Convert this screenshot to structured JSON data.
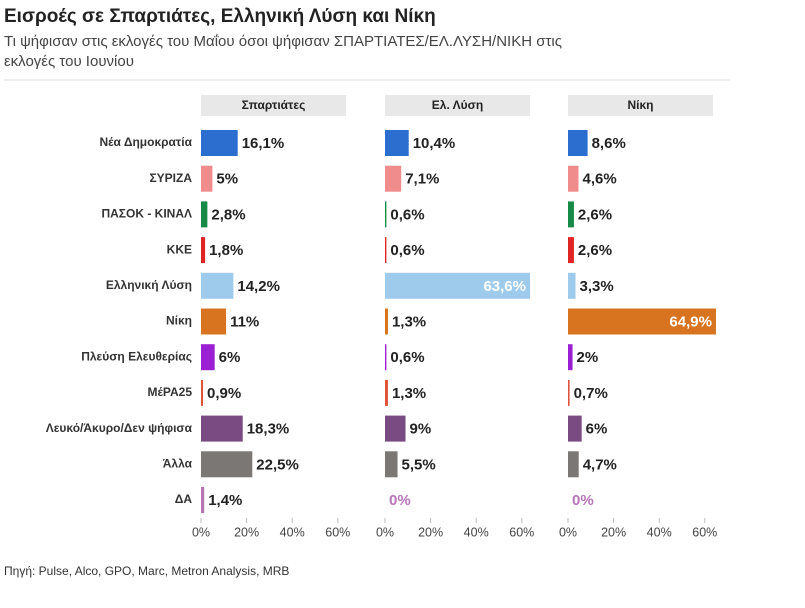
{
  "chart_data": {
    "type": "bar",
    "title": "Εισροές σε Σπαρτιάτες, Ελληνική Λύση και Νίκη",
    "subtitle": [
      "Τι ψήφισαν στις εκλογές του Μαΐου όσοι ψήφισαν ΣΠΑΡΤΙΑΤΕΣ/ΕΛ.ΛΥΣΗ/ΝΙΚΗ στις",
      "εκλογές του Ιουνίου"
    ],
    "source": "Πηγή: Pulse, Alco, GPO, Marc, Metron Analysis, MRB",
    "categories": [
      "Νέα Δημοκρατία",
      "ΣΥΡΙΖΑ",
      "ΠΑΣΟΚ - ΚΙΝΑΛ",
      "ΚΚΕ",
      "Ελληνική Λύση",
      "Νίκη",
      "Πλεύση Ελευθερίας",
      "ΜέΡΑ25",
      "Λευκό/Άκυρο/Δεν ψήφισα",
      "Άλλα",
      "ΔΑ"
    ],
    "colors": [
      "#2c6dd0",
      "#f08c8c",
      "#178a48",
      "#e02424",
      "#9ecbec",
      "#d8741f",
      "#9b1fd3",
      "#e0533a",
      "#7a4b82",
      "#7b7774",
      "#b775b8"
    ],
    "xlim": [
      0,
      60
    ],
    "xticks": [
      {
        "value": 0,
        "label": "0%"
      },
      {
        "value": 20,
        "label": "20%"
      },
      {
        "value": 40,
        "label": "40%"
      },
      {
        "value": 60,
        "label": "60%"
      }
    ],
    "series": [
      {
        "name": "Σπαρτιάτες",
        "values": [
          16.1,
          5,
          2.8,
          1.8,
          14.2,
          11,
          6,
          0.9,
          18.3,
          22.5,
          1.4
        ],
        "value_labels": [
          "16,1%",
          "5%",
          "2,8%",
          "1,8%",
          "14,2%",
          "11%",
          "6%",
          "0,9%",
          "18,3%",
          "22,5%",
          "1,4%"
        ]
      },
      {
        "name": "Ελ. Λύση",
        "values": [
          10.4,
          7.1,
          0.6,
          0.6,
          63.6,
          1.3,
          0.6,
          1.3,
          9,
          5.5,
          0
        ],
        "value_labels": [
          "10,4%",
          "7,1%",
          "0,6%",
          "0,6%",
          "63,6%",
          "1,3%",
          "0,6%",
          "1,3%",
          "9%",
          "5,5%",
          "0%"
        ]
      },
      {
        "name": "Νίκη",
        "values": [
          8.6,
          4.6,
          2.6,
          2.6,
          3.3,
          64.9,
          2,
          0.7,
          6,
          4.7,
          0
        ],
        "value_labels": [
          "8,6%",
          "4,6%",
          "2,6%",
          "2,6%",
          "3,3%",
          "64,9%",
          "2%",
          "0,7%",
          "6%",
          "4,7%",
          "0%"
        ]
      }
    ]
  }
}
